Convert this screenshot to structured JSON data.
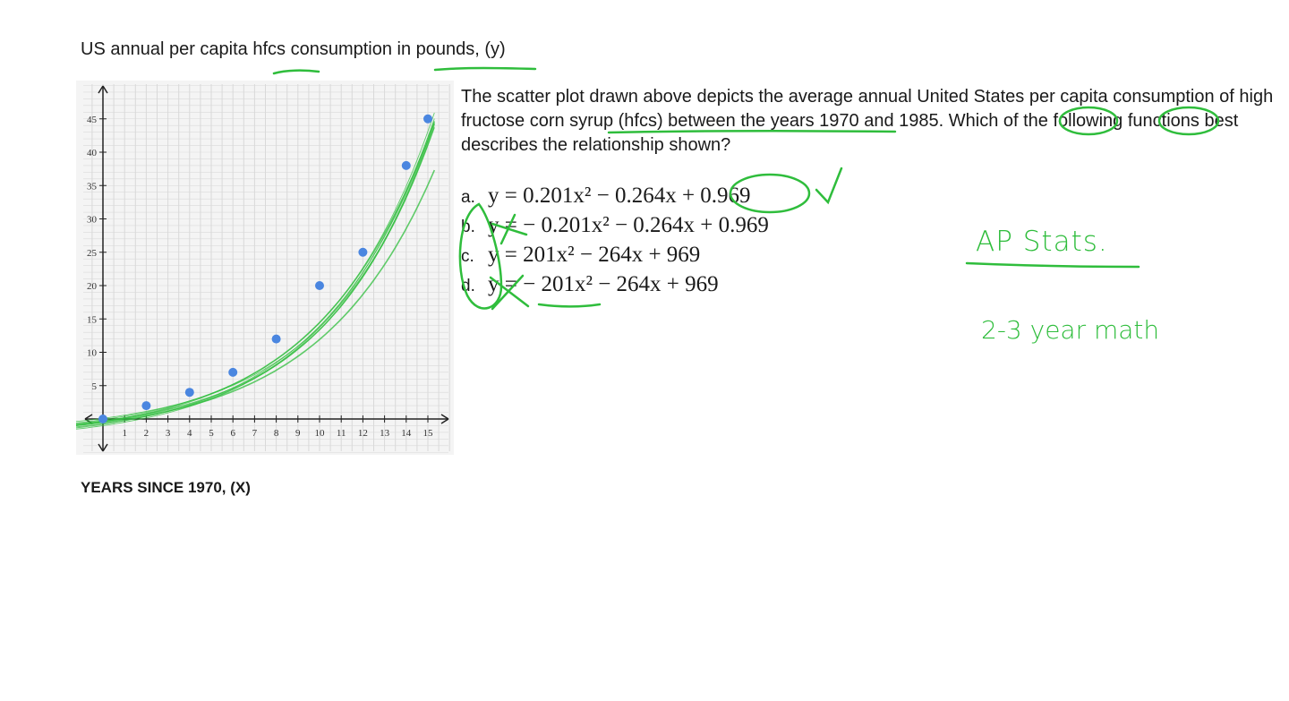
{
  "header": {
    "title": "US annual per capita hfcs consumption in pounds, (y)"
  },
  "xaxis_label": "YEARS SINCE 1970, (X)",
  "question": {
    "text": "The scatter plot drawn above depicts the average annual United States per capita consumption of high fructose corn syrup (hfcs) between the years 1970 and 1985. Which of the following functions best describes the relationship shown?",
    "choices": [
      {
        "letter": "a.",
        "formula": "y = 0.201x² − 0.264x + 0.969"
      },
      {
        "letter": "b.",
        "formula": "y = − 0.201x² − 0.264x + 0.969"
      },
      {
        "letter": "c.",
        "formula": "y = 201x² − 264x + 969"
      },
      {
        "letter": "d.",
        "formula": "y = − 201x² − 264x + 969"
      }
    ]
  },
  "notes": {
    "ap": "AP Stats.",
    "years": "2-3 year math"
  },
  "colors": {
    "points": "#4a86e0",
    "ink": "#2fbd3c",
    "grid": "#d9d9d9"
  },
  "chart_data": {
    "type": "scatter",
    "x": [
      0,
      2,
      4,
      6,
      8,
      10,
      12,
      14,
      15
    ],
    "y": [
      0,
      2,
      4,
      7,
      12,
      20,
      25,
      38,
      45
    ],
    "xticks": [
      1,
      2,
      3,
      4,
      5,
      6,
      7,
      8,
      9,
      10,
      11,
      12,
      13,
      14,
      15
    ],
    "yticks": [
      5,
      10,
      15,
      20,
      25,
      30,
      35,
      40,
      45
    ],
    "xlim": [
      0,
      16
    ],
    "ylim": [
      -5,
      50
    ],
    "grid": true
  }
}
